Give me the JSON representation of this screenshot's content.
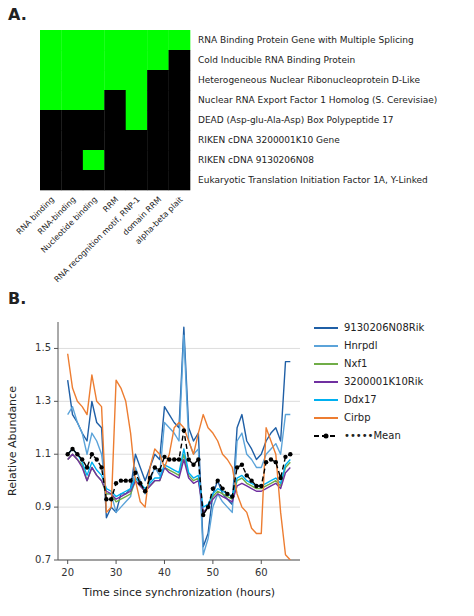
{
  "chart_data": [
    {
      "type": "heatmap",
      "title": "A.",
      "categories": [
        "RNA binding",
        "RNA-binding",
        "Nucleotide binding",
        "RRM",
        "RNA recognition motif, RNP-1",
        "domain RRM",
        "alpha-beta plait"
      ],
      "series": [
        {
          "name": "RNA Binding Protein Gene with Multiple Splicing",
          "values": [
            1,
            1,
            1,
            1,
            1,
            1,
            1
          ]
        },
        {
          "name": "Cold Inducible RNA Binding Protein",
          "values": [
            1,
            1,
            1,
            1,
            1,
            1,
            0
          ]
        },
        {
          "name": "Heterogeneous Nuclear Ribonucleoprotein D-Like",
          "values": [
            1,
            1,
            1,
            1,
            1,
            0,
            0
          ]
        },
        {
          "name": "Nuclear RNA Export Factor 1 Homolog (S. Cerevisiae)",
          "values": [
            1,
            1,
            1,
            0,
            1,
            0,
            0
          ]
        },
        {
          "name": "DEAD (Asp-glu-Ala-Asp) Box Polypeptide 17",
          "values": [
            0,
            0,
            0,
            0,
            1,
            0,
            0
          ]
        },
        {
          "name": "RIKEN cDNA 3200001K10 Gene",
          "values": [
            0,
            0,
            0,
            0,
            0,
            0,
            0
          ]
        },
        {
          "name": "RIKEN cDNA 9130206N08",
          "values": [
            0,
            0,
            1,
            0,
            0,
            0,
            0
          ]
        },
        {
          "name": "Eukaryotic Translation Initiation Factor 1A, Y-Linked",
          "values": [
            0,
            0,
            0,
            0,
            0,
            0,
            0
          ]
        }
      ],
      "colors": [
        "#000000",
        "#00ff00"
      ]
    },
    {
      "type": "line",
      "title": "B.",
      "xlabel": "Time since synchronization (hours)",
      "ylabel": "Relative Abundance",
      "x": [
        20,
        21,
        22,
        23,
        24,
        25,
        26,
        27,
        28,
        29,
        30,
        31,
        32,
        33,
        34,
        35,
        36,
        37,
        38,
        39,
        40,
        41,
        42,
        43,
        44,
        45,
        46,
        47,
        48,
        49,
        50,
        51,
        52,
        53,
        54,
        55,
        56,
        57,
        58,
        59,
        60,
        61,
        62,
        63,
        64,
        65,
        66
      ],
      "series": [
        {
          "name": "9130206N08Rik",
          "color": "#1f5fa6",
          "values": [
            1.38,
            1.25,
            1.22,
            1.18,
            1.15,
            1.3,
            1.22,
            1.2,
            0.86,
            0.9,
            0.88,
            0.95,
            0.95,
            0.97,
            1.1,
            1.05,
            1.0,
            1.05,
            1.1,
            1.08,
            1.28,
            1.25,
            1.22,
            1.2,
            1.58,
            1.2,
            1.15,
            1.18,
            0.75,
            0.8,
            0.95,
            1.0,
            0.95,
            0.93,
            0.91,
            1.2,
            1.25,
            1.15,
            1.12,
            1.08,
            1.1,
            1.15,
            1.18,
            1.2,
            1.15,
            1.45,
            1.45
          ]
        },
        {
          "name": "Hnrpdl",
          "color": "#5ba3d9",
          "values": [
            1.25,
            1.28,
            1.22,
            1.18,
            1.1,
            1.18,
            1.15,
            1.1,
            0.95,
            0.95,
            0.88,
            0.9,
            0.92,
            0.94,
            1.05,
            1.0,
            0.95,
            1.0,
            1.05,
            1.02,
            1.22,
            1.2,
            1.18,
            1.15,
            1.55,
            1.15,
            1.1,
            1.12,
            0.72,
            0.78,
            0.9,
            0.95,
            0.92,
            0.9,
            0.88,
            1.15,
            1.18,
            1.1,
            1.08,
            1.05,
            1.05,
            1.1,
            1.12,
            1.14,
            1.1,
            1.25,
            1.25
          ]
        },
        {
          "name": "Nxf1",
          "color": "#70ad47",
          "values": [
            1.08,
            1.1,
            1.08,
            1.06,
            1.0,
            1.05,
            1.02,
            1.0,
            0.95,
            0.95,
            0.92,
            0.93,
            0.94,
            0.95,
            1.0,
            0.98,
            0.96,
            0.98,
            1.0,
            1.0,
            1.05,
            1.04,
            1.03,
            1.02,
            1.1,
            1.02,
            1.0,
            1.01,
            0.88,
            0.9,
            0.94,
            0.96,
            0.95,
            0.94,
            0.93,
            1.0,
            1.01,
            0.99,
            0.98,
            0.97,
            0.97,
            0.98,
            0.99,
            1.0,
            0.98,
            1.05,
            1.07
          ]
        },
        {
          "name": "3200001K10Rik",
          "color": "#7030a0",
          "values": [
            1.08,
            1.1,
            1.08,
            1.05,
            1.0,
            1.05,
            1.02,
            1.0,
            0.96,
            0.95,
            0.93,
            0.94,
            0.95,
            0.96,
            1.0,
            0.98,
            0.96,
            0.98,
            1.0,
            1.0,
            1.05,
            1.03,
            1.02,
            1.01,
            1.08,
            1.01,
            0.99,
            1.0,
            0.88,
            0.9,
            0.93,
            0.95,
            0.94,
            0.93,
            0.92,
            0.98,
            0.99,
            0.98,
            0.97,
            0.96,
            0.96,
            0.97,
            0.98,
            0.99,
            0.97,
            1.03,
            1.05
          ]
        },
        {
          "name": "Ddx17",
          "color": "#00b0f0",
          "values": [
            1.1,
            1.12,
            1.1,
            1.07,
            1.02,
            1.07,
            1.04,
            1.02,
            0.97,
            0.96,
            0.94,
            0.95,
            0.96,
            0.97,
            1.01,
            0.99,
            0.97,
            0.99,
            1.01,
            1.01,
            1.06,
            1.05,
            1.04,
            1.03,
            1.12,
            1.03,
            1.01,
            1.02,
            0.9,
            0.91,
            0.95,
            0.97,
            0.96,
            0.95,
            0.94,
            1.01,
            1.02,
            1.0,
            0.99,
            0.98,
            0.98,
            0.99,
            1.0,
            1.01,
            0.99,
            1.06,
            1.08
          ]
        },
        {
          "name": "Cirbp",
          "color": "#ed7d31",
          "values": [
            1.48,
            1.35,
            1.3,
            1.28,
            1.25,
            1.4,
            1.3,
            1.28,
            0.88,
            0.9,
            1.38,
            1.35,
            1.3,
            1.18,
            1.0,
            0.92,
            0.9,
            1.05,
            1.12,
            1.1,
            1.05,
            1.1,
            1.2,
            1.22,
            1.2,
            1.15,
            1.1,
            1.18,
            1.25,
            1.2,
            1.18,
            1.15,
            1.1,
            1.08,
            1.05,
            0.95,
            0.9,
            0.88,
            0.82,
            0.8,
            0.8,
            1.2,
            1.15,
            1.1,
            0.88,
            0.72,
            0.7
          ]
        },
        {
          "name": "•••••Mean",
          "color": "#000000",
          "line_style": "dashed",
          "marker": "circle",
          "values": [
            1.1,
            1.12,
            1.1,
            1.08,
            1.05,
            1.1,
            1.08,
            1.05,
            0.93,
            0.93,
            0.99,
            1.0,
            1.0,
            1.0,
            1.03,
            0.99,
            0.96,
            1.01,
            1.05,
            1.04,
            1.09,
            1.08,
            1.08,
            1.08,
            1.19,
            1.08,
            1.06,
            1.08,
            0.87,
            0.9,
            0.97,
            1.0,
            0.97,
            0.95,
            0.94,
            1.05,
            1.06,
            1.02,
            1.0,
            0.98,
            0.98,
            1.07,
            1.08,
            1.07,
            1.01,
            1.09,
            1.1
          ]
        }
      ],
      "xlim": [
        18,
        68
      ],
      "ylim": [
        0.7,
        1.6
      ],
      "xticks": [
        20,
        30,
        40,
        50,
        60
      ],
      "yticks": [
        0.7,
        0.9,
        1.1,
        1.3,
        1.5
      ],
      "grid": "y",
      "legend": "right"
    }
  ]
}
